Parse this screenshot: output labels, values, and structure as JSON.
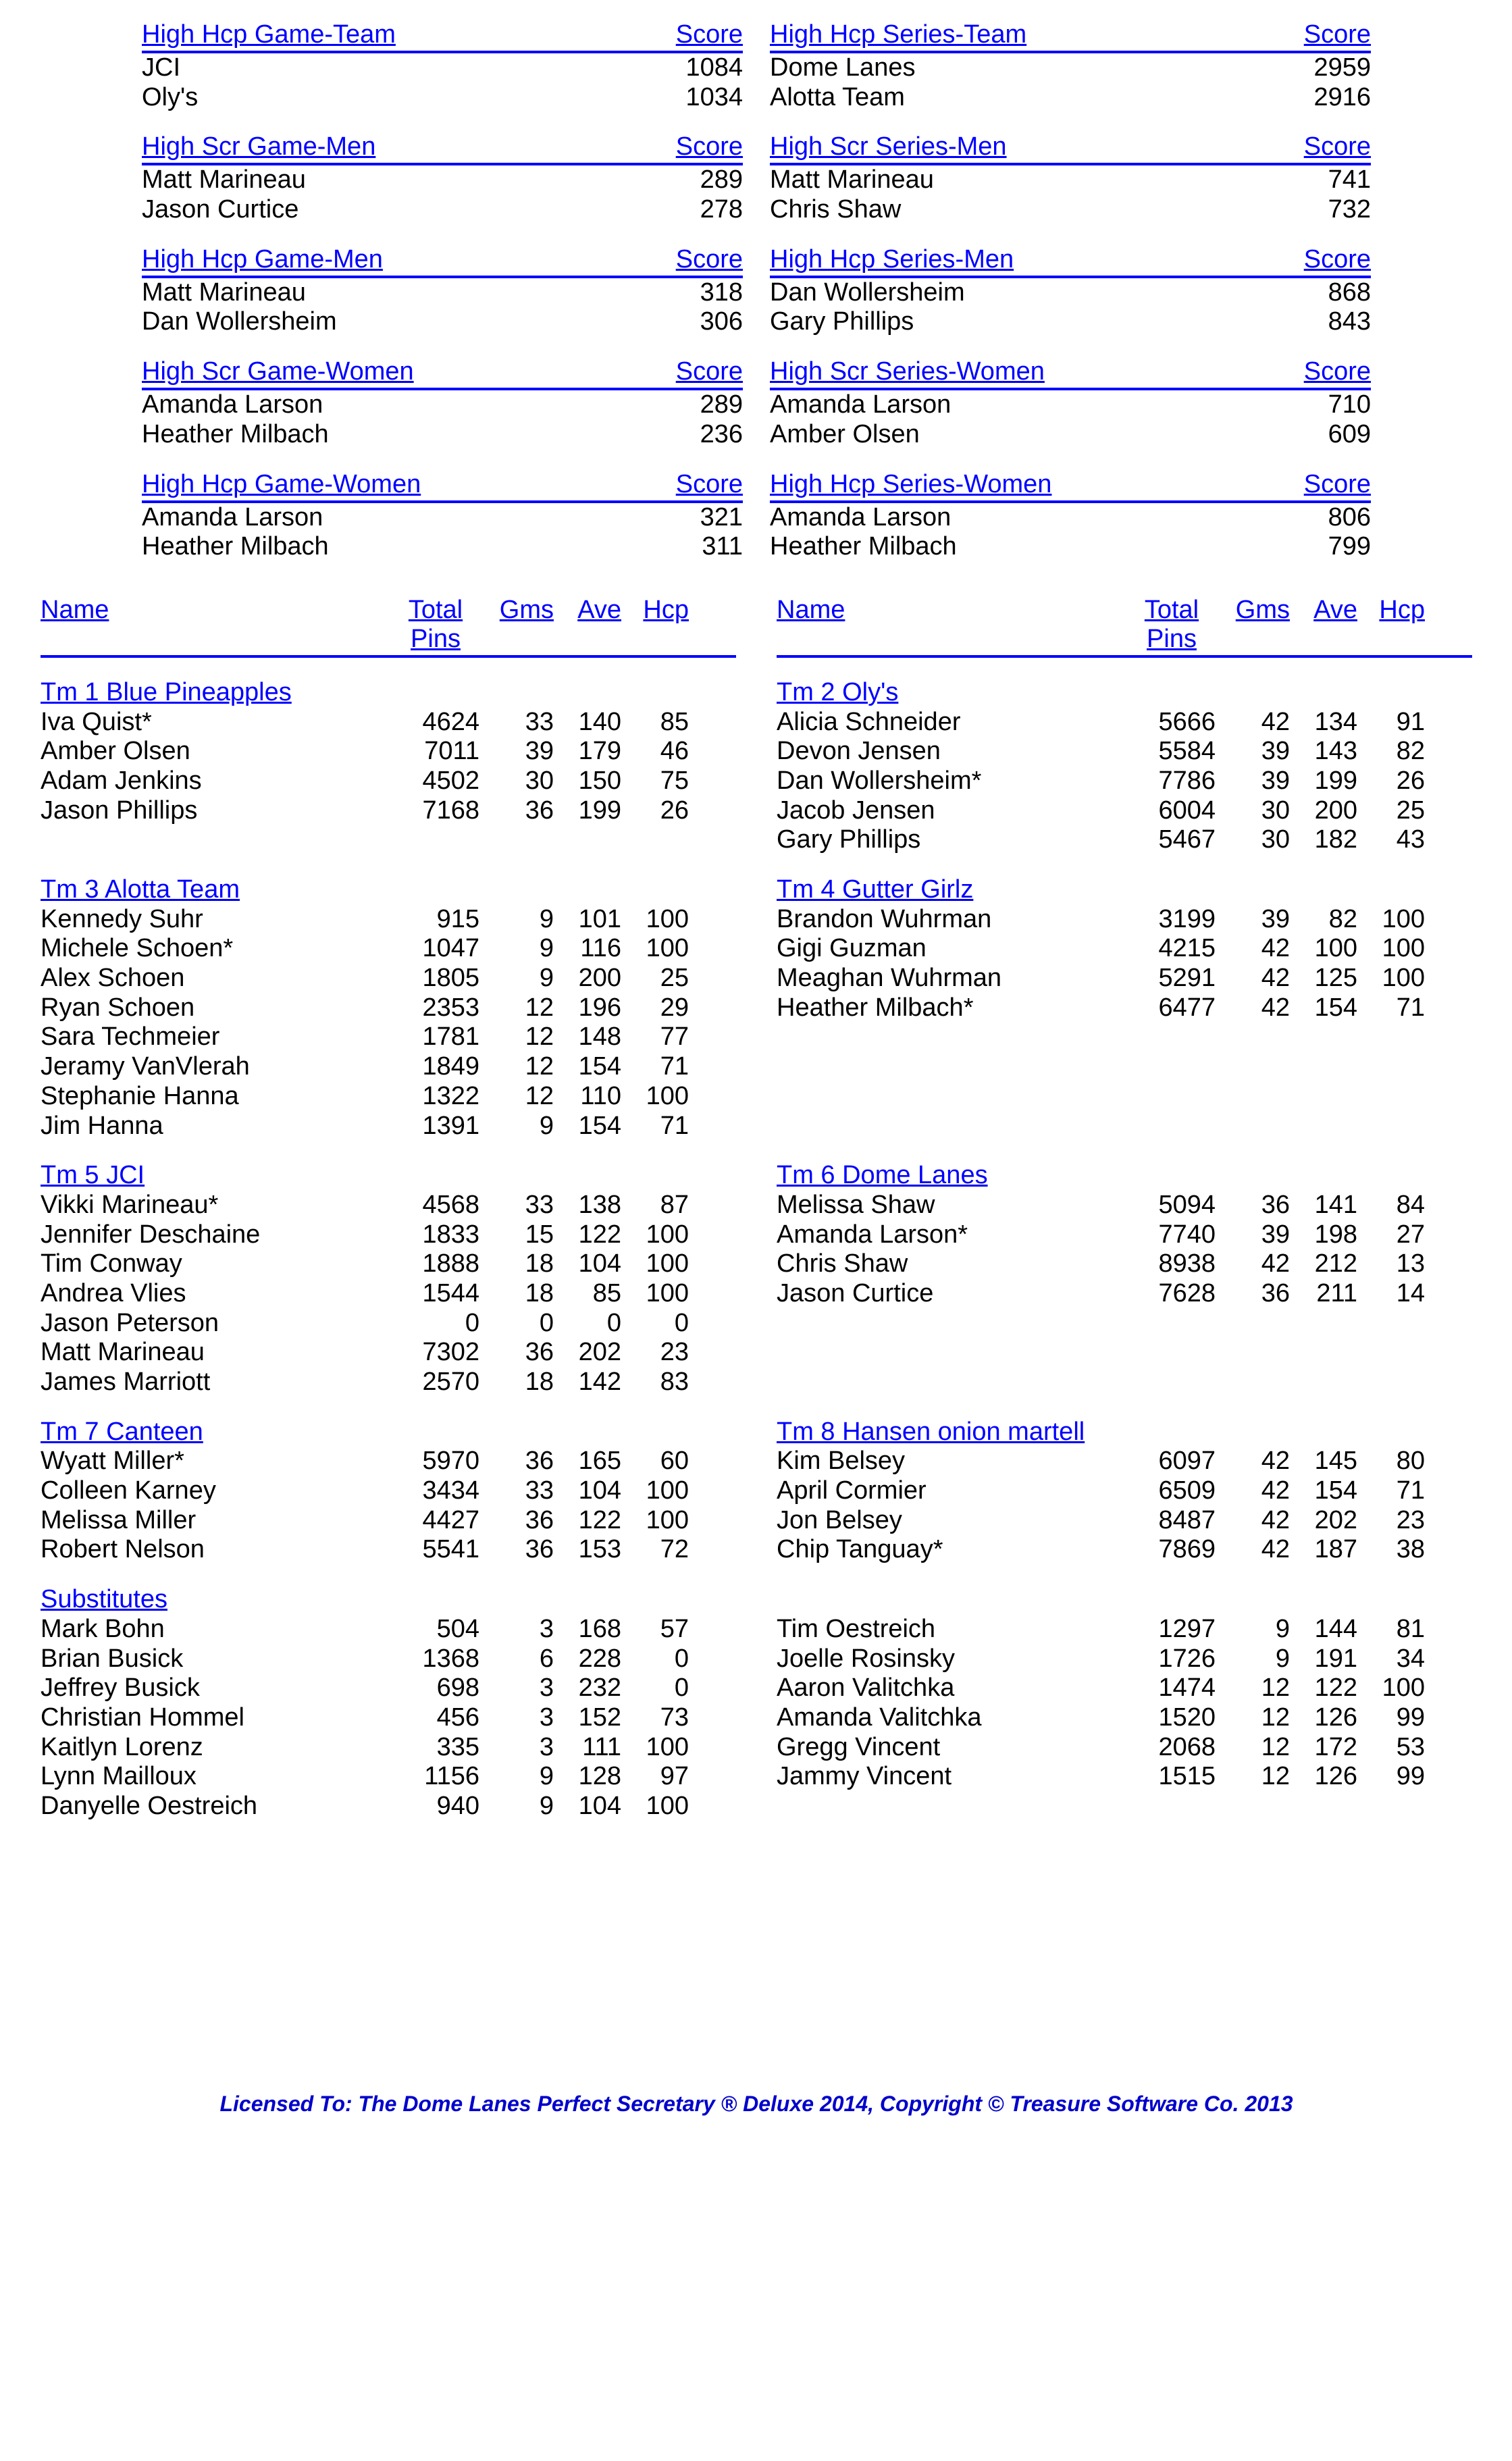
{
  "high_pairs": [
    {
      "left": {
        "title": "High Hcp Game-Team",
        "score_label": "Score",
        "rows": [
          {
            "n": "JCI",
            "s": "1084"
          },
          {
            "n": "Oly's",
            "s": "1034"
          }
        ]
      },
      "right": {
        "title": "High Hcp Series-Team",
        "score_label": "Score",
        "rows": [
          {
            "n": "Dome Lanes",
            "s": "2959"
          },
          {
            "n": "Alotta Team",
            "s": "2916"
          }
        ]
      }
    },
    {
      "left": {
        "title": "High Scr Game-Men",
        "score_label": "Score",
        "rows": [
          {
            "n": "Matt Marineau",
            "s": "289"
          },
          {
            "n": "Jason Curtice",
            "s": "278"
          }
        ]
      },
      "right": {
        "title": "High Scr Series-Men",
        "score_label": "Score",
        "rows": [
          {
            "n": "Matt Marineau",
            "s": "741"
          },
          {
            "n": "Chris Shaw",
            "s": "732"
          }
        ]
      }
    },
    {
      "left": {
        "title": "High Hcp Game-Men",
        "score_label": "Score",
        "rows": [
          {
            "n": "Matt Marineau",
            "s": "318"
          },
          {
            "n": "Dan Wollersheim",
            "s": "306"
          }
        ]
      },
      "right": {
        "title": "High Hcp Series-Men",
        "score_label": "Score",
        "rows": [
          {
            "n": "Dan Wollersheim",
            "s": "868"
          },
          {
            "n": "Gary Phillips",
            "s": "843"
          }
        ]
      }
    },
    {
      "left": {
        "title": "High Scr Game-Women",
        "score_label": "Score",
        "rows": [
          {
            "n": "Amanda Larson",
            "s": "289"
          },
          {
            "n": "Heather Milbach",
            "s": "236"
          }
        ]
      },
      "right": {
        "title": "High Scr Series-Women",
        "score_label": "Score",
        "rows": [
          {
            "n": "Amanda Larson",
            "s": "710"
          },
          {
            "n": "Amber Olsen",
            "s": "609"
          }
        ]
      }
    },
    {
      "left": {
        "title": "High Hcp Game-Women",
        "score_label": "Score",
        "rows": [
          {
            "n": "Amanda Larson",
            "s": "321"
          },
          {
            "n": "Heather Milbach",
            "s": "311"
          }
        ]
      },
      "right": {
        "title": "High Hcp Series-Women",
        "score_label": "Score",
        "rows": [
          {
            "n": "Amanda Larson",
            "s": "806"
          },
          {
            "n": "Heather Milbach",
            "s": "799"
          }
        ]
      }
    }
  ],
  "roster_header": {
    "name": "Name",
    "total": "Total",
    "pins": "Pins",
    "gms": "Gms",
    "ave": "Ave",
    "hcp": "Hcp"
  },
  "teams_left": [
    {
      "name": "Tm 1 Blue Pineapples",
      "players": [
        {
          "n": "Iva Quist*",
          "p": "4624",
          "g": "33",
          "a": "140",
          "h": "85"
        },
        {
          "n": "Amber Olsen",
          "p": "7011",
          "g": "39",
          "a": "179",
          "h": "46"
        },
        {
          "n": "Adam Jenkins",
          "p": "4502",
          "g": "30",
          "a": "150",
          "h": "75"
        },
        {
          "n": "Jason Phillips",
          "p": "7168",
          "g": "36",
          "a": "199",
          "h": "26"
        }
      ]
    },
    {
      "name": "Tm 3 Alotta Team",
      "players": [
        {
          "n": "Kennedy Suhr",
          "p": "915",
          "g": "9",
          "a": "101",
          "h": "100"
        },
        {
          "n": "Michele Schoen*",
          "p": "1047",
          "g": "9",
          "a": "116",
          "h": "100"
        },
        {
          "n": "Alex Schoen",
          "p": "1805",
          "g": "9",
          "a": "200",
          "h": "25"
        },
        {
          "n": "Ryan Schoen",
          "p": "2353",
          "g": "12",
          "a": "196",
          "h": "29"
        },
        {
          "n": "Sara Techmeier",
          "p": "1781",
          "g": "12",
          "a": "148",
          "h": "77"
        },
        {
          "n": "Jeramy VanVlerah",
          "p": "1849",
          "g": "12",
          "a": "154",
          "h": "71"
        },
        {
          "n": "Stephanie Hanna",
          "p": "1322",
          "g": "12",
          "a": "110",
          "h": "100"
        },
        {
          "n": "Jim Hanna",
          "p": "1391",
          "g": "9",
          "a": "154",
          "h": "71"
        }
      ]
    },
    {
      "name": "Tm 5 JCI",
      "players": [
        {
          "n": "Vikki Marineau*",
          "p": "4568",
          "g": "33",
          "a": "138",
          "h": "87"
        },
        {
          "n": "Jennifer Deschaine",
          "p": "1833",
          "g": "15",
          "a": "122",
          "h": "100"
        },
        {
          "n": "Tim Conway",
          "p": "1888",
          "g": "18",
          "a": "104",
          "h": "100"
        },
        {
          "n": "Andrea Vlies",
          "p": "1544",
          "g": "18",
          "a": "85",
          "h": "100"
        },
        {
          "n": "Jason Peterson",
          "p": "0",
          "g": "0",
          "a": "0",
          "h": "0"
        },
        {
          "n": "Matt Marineau",
          "p": "7302",
          "g": "36",
          "a": "202",
          "h": "23"
        },
        {
          "n": "James Marriott",
          "p": "2570",
          "g": "18",
          "a": "142",
          "h": "83"
        }
      ]
    },
    {
      "name": "Tm 7 Canteen",
      "players": [
        {
          "n": "Wyatt Miller*",
          "p": "5970",
          "g": "36",
          "a": "165",
          "h": "60"
        },
        {
          "n": "Colleen Karney",
          "p": "3434",
          "g": "33",
          "a": "104",
          "h": "100"
        },
        {
          "n": "Melissa Miller",
          "p": "4427",
          "g": "36",
          "a": "122",
          "h": "100"
        },
        {
          "n": "Robert Nelson",
          "p": "5541",
          "g": "36",
          "a": "153",
          "h": "72"
        }
      ]
    }
  ],
  "teams_right": [
    {
      "name": "Tm 2 Oly's",
      "players": [
        {
          "n": "Alicia Schneider",
          "p": "5666",
          "g": "42",
          "a": "134",
          "h": "91"
        },
        {
          "n": "Devon Jensen",
          "p": "5584",
          "g": "39",
          "a": "143",
          "h": "82"
        },
        {
          "n": "Dan Wollersheim*",
          "p": "7786",
          "g": "39",
          "a": "199",
          "h": "26"
        },
        {
          "n": "Jacob Jensen",
          "p": "6004",
          "g": "30",
          "a": "200",
          "h": "25"
        },
        {
          "n": "Gary Phillips",
          "p": "5467",
          "g": "30",
          "a": "182",
          "h": "43"
        }
      ]
    },
    {
      "name": "Tm 4 Gutter Girlz",
      "players": [
        {
          "n": "Brandon Wuhrman",
          "p": "3199",
          "g": "39",
          "a": "82",
          "h": "100"
        },
        {
          "n": "Gigi Guzman",
          "p": "4215",
          "g": "42",
          "a": "100",
          "h": "100"
        },
        {
          "n": "Meaghan Wuhrman",
          "p": "5291",
          "g": "42",
          "a": "125",
          "h": "100"
        },
        {
          "n": "Heather Milbach*",
          "p": "6477",
          "g": "42",
          "a": "154",
          "h": "71"
        }
      ]
    },
    {
      "name": "Tm 6 Dome Lanes",
      "players": [
        {
          "n": "Melissa Shaw",
          "p": "5094",
          "g": "36",
          "a": "141",
          "h": "84"
        },
        {
          "n": "Amanda Larson*",
          "p": "7740",
          "g": "39",
          "a": "198",
          "h": "27"
        },
        {
          "n": "Chris Shaw",
          "p": "8938",
          "g": "42",
          "a": "212",
          "h": "13"
        },
        {
          "n": "Jason Curtice",
          "p": "7628",
          "g": "36",
          "a": "211",
          "h": "14"
        }
      ]
    },
    {
      "name": "Tm 8 Hansen onion martell",
      "players": [
        {
          "n": "Kim Belsey",
          "p": "6097",
          "g": "42",
          "a": "145",
          "h": "80"
        },
        {
          "n": "April Cormier",
          "p": "6509",
          "g": "42",
          "a": "154",
          "h": "71"
        },
        {
          "n": "Jon Belsey",
          "p": "8487",
          "g": "42",
          "a": "202",
          "h": "23"
        },
        {
          "n": "Chip Tanguay*",
          "p": "7869",
          "g": "42",
          "a": "187",
          "h": "38"
        }
      ]
    }
  ],
  "subs_title": "Substitutes",
  "subs_left": [
    {
      "n": "Mark Bohn",
      "p": "504",
      "g": "3",
      "a": "168",
      "h": "57"
    },
    {
      "n": "Brian Busick",
      "p": "1368",
      "g": "6",
      "a": "228",
      "h": "0"
    },
    {
      "n": "Jeffrey Busick",
      "p": "698",
      "g": "3",
      "a": "232",
      "h": "0"
    },
    {
      "n": "Christian Hommel",
      "p": "456",
      "g": "3",
      "a": "152",
      "h": "73"
    },
    {
      "n": "Kaitlyn Lorenz",
      "p": "335",
      "g": "3",
      "a": "111",
      "h": "100"
    },
    {
      "n": "Lynn Mailloux",
      "p": "1156",
      "g": "9",
      "a": "128",
      "h": "97"
    },
    {
      "n": "Danyelle Oestreich",
      "p": "940",
      "g": "9",
      "a": "104",
      "h": "100"
    }
  ],
  "subs_right": [
    {
      "n": "Tim Oestreich",
      "p": "1297",
      "g": "9",
      "a": "144",
      "h": "81"
    },
    {
      "n": "Joelle Rosinsky",
      "p": "1726",
      "g": "9",
      "a": "191",
      "h": "34"
    },
    {
      "n": "Aaron Valitchka",
      "p": "1474",
      "g": "12",
      "a": "122",
      "h": "100"
    },
    {
      "n": "Amanda Valitchka",
      "p": "1520",
      "g": "12",
      "a": "126",
      "h": "99"
    },
    {
      "n": "Gregg Vincent",
      "p": "2068",
      "g": "12",
      "a": "172",
      "h": "53"
    },
    {
      "n": "Jammy Vincent",
      "p": "1515",
      "g": "12",
      "a": "126",
      "h": "99"
    }
  ],
  "footer": "Licensed To: The Dome Lanes    Perfect Secretary ® Deluxe  2014, Copyright © Treasure Software Co. 2013"
}
